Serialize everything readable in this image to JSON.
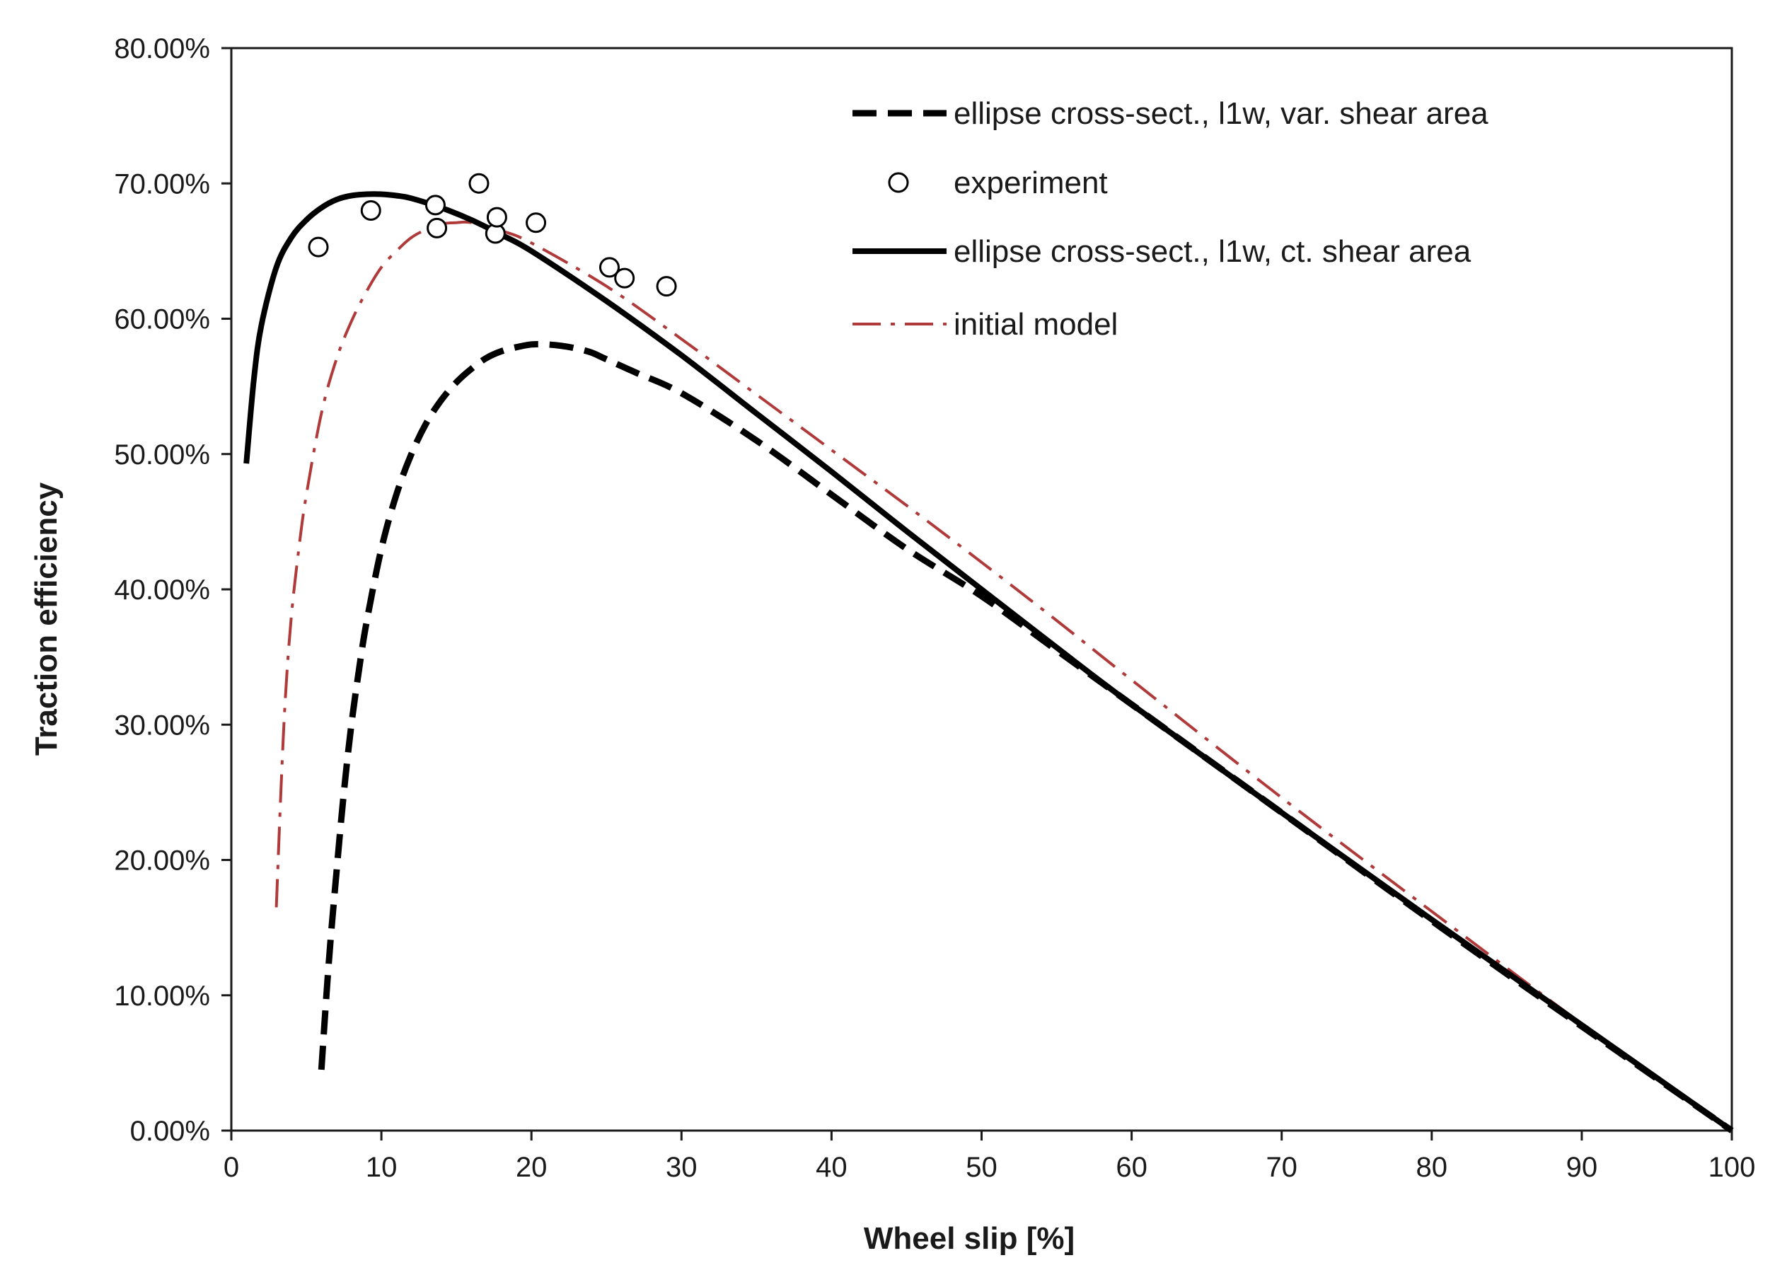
{
  "chart_data": {
    "type": "line",
    "title": "",
    "xlabel": "Wheel slip [%]",
    "ylabel": "Traction efficiency",
    "xlim": [
      0,
      100
    ],
    "ylim": [
      0,
      80
    ],
    "xticks": [
      0,
      10,
      20,
      30,
      40,
      50,
      60,
      70,
      80,
      90,
      100
    ],
    "yticks": [
      0,
      10,
      20,
      30,
      40,
      50,
      60,
      70,
      80
    ],
    "xtick_labels": [
      "0",
      "10",
      "20",
      "30",
      "40",
      "50",
      "60",
      "70",
      "80",
      "90",
      "100"
    ],
    "ytick_labels": [
      "0.00%",
      "10.00%",
      "20.00%",
      "30.00%",
      "40.00%",
      "50.00%",
      "60.00%",
      "70.00%",
      "80.00%"
    ],
    "grid": false,
    "legend_position": "top-right",
    "series": [
      {
        "name": "ellipse cross-sect., l1w, var. shear area",
        "style": "dashed",
        "color": "#000000",
        "x": [
          6,
          6.5,
          7,
          7.5,
          8,
          8.5,
          9,
          10,
          11,
          12,
          13,
          14,
          15,
          16,
          17,
          18,
          19,
          20,
          21,
          22,
          23,
          24,
          25,
          27,
          30,
          35,
          40,
          45,
          50,
          55,
          60,
          70,
          80,
          90,
          100
        ],
        "y": [
          4.5,
          12.5,
          19,
          25,
          30,
          34,
          37.5,
          43,
          47,
          50,
          52.3,
          54,
          55.3,
          56.3,
          57.1,
          57.6,
          57.9,
          58.1,
          58.1,
          58.0,
          57.8,
          57.5,
          57.0,
          56.0,
          54.5,
          51.0,
          47.0,
          43.0,
          39.5,
          35.5,
          31.5,
          23.5,
          15.5,
          7.7,
          0
        ]
      },
      {
        "name": "experiment",
        "style": "markers",
        "color": "#000000",
        "x": [
          5.8,
          9.3,
          13.6,
          13.7,
          16.5,
          17.6,
          17.7,
          20.3,
          25.2,
          26.2,
          29.0
        ],
        "y": [
          65.3,
          68.0,
          68.4,
          66.7,
          70.0,
          66.3,
          67.5,
          67.1,
          63.8,
          63.0,
          62.4
        ]
      },
      {
        "name": "ellipse cross-sect., l1w, ct. shear area",
        "style": "solid",
        "color": "#000000",
        "x": [
          1,
          1.5,
          2,
          3,
          4,
          5,
          6,
          7,
          8,
          9,
          10,
          11,
          12,
          14,
          16,
          18,
          20,
          25,
          30,
          35,
          40,
          45,
          50,
          55,
          60,
          70,
          80,
          90,
          100
        ],
        "y": [
          49.3,
          55.5,
          59.5,
          63.8,
          66.0,
          67.3,
          68.2,
          68.8,
          69.1,
          69.2,
          69.2,
          69.1,
          68.9,
          68.2,
          67.3,
          66.2,
          65.0,
          61.3,
          57.3,
          53.0,
          48.7,
          44.3,
          40.0,
          35.7,
          31.5,
          23.5,
          15.6,
          7.8,
          0
        ]
      },
      {
        "name": "initial model",
        "style": "dashdot",
        "color": "#b03a3a",
        "x": [
          3,
          3.3,
          3.6,
          4,
          4.5,
          5,
          6,
          7,
          8,
          9,
          10,
          11,
          12,
          13,
          14,
          15,
          16,
          18,
          20,
          25,
          30,
          35,
          40,
          45,
          50,
          55,
          60,
          70,
          80,
          90,
          100
        ],
        "y": [
          16.5,
          25,
          32,
          38,
          43,
          47,
          53,
          57,
          59.8,
          62,
          63.8,
          65,
          66,
          66.6,
          67.0,
          67.1,
          67.1,
          66.5,
          65.6,
          62.4,
          58.5,
          54.4,
          50.3,
          46.2,
          42.0,
          37.7,
          33.3,
          24.6,
          16.2,
          7.9,
          0
        ]
      }
    ]
  }
}
